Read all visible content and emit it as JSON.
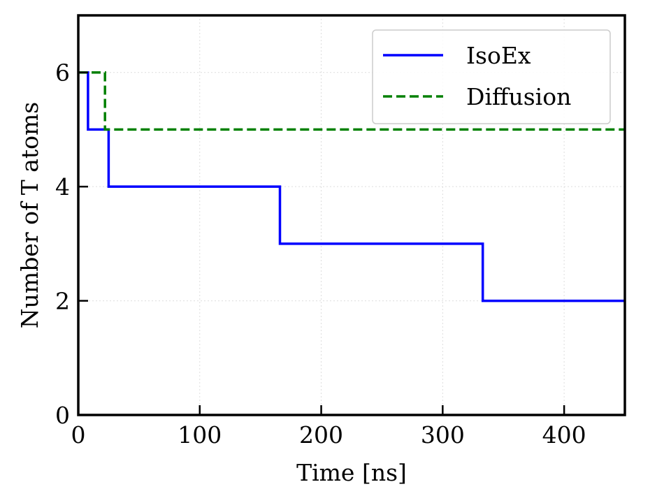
{
  "chart_data": {
    "type": "line",
    "title": "",
    "xlabel": "Time [ns]",
    "ylabel": "Number of T atoms",
    "xlim": [
      0,
      450
    ],
    "ylim": [
      0,
      7
    ],
    "xticks": [
      0,
      100,
      200,
      300,
      400
    ],
    "yticks": [
      0,
      2,
      4,
      6
    ],
    "grid": true,
    "legend_position": "top-right",
    "step": true,
    "series": [
      {
        "name": "IsoEx",
        "color": "#0000ff",
        "linestyle": "solid",
        "x": [
          0,
          8,
          8,
          25,
          25,
          166,
          166,
          333,
          333,
          450
        ],
        "y": [
          6,
          6,
          5,
          5,
          4,
          4,
          3,
          3,
          2,
          2
        ]
      },
      {
        "name": "Diffusion",
        "color": "#008000",
        "linestyle": "dashed",
        "x": [
          0,
          22,
          22,
          450
        ],
        "y": [
          6,
          6,
          5,
          5
        ]
      }
    ]
  }
}
